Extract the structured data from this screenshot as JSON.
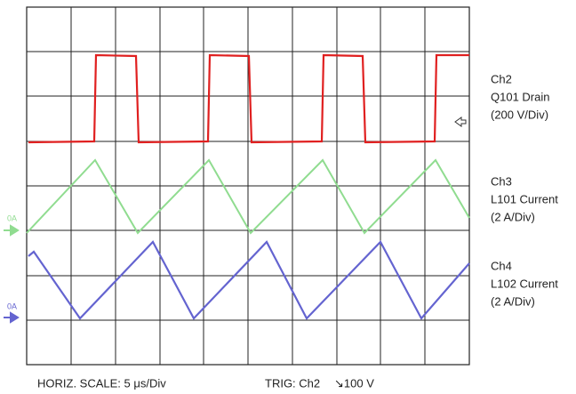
{
  "channels": [
    {
      "lines": [
        "Ch2",
        "Q101 Drain",
        "(200 V/Div)"
      ]
    },
    {
      "lines": [
        "Ch3",
        "L101 Current",
        "(2 A/Div)"
      ]
    },
    {
      "lines": [
        "Ch4",
        "L102 Current",
        "(2 A/Div)"
      ]
    }
  ],
  "markers": [
    {
      "label": "0A"
    },
    {
      "label": "0A"
    }
  ],
  "footer": {
    "horizontal": "HORIZ. SCALE: 5 μs/Div",
    "trigger": "TRIG: Ch2",
    "trigger_level": "↘100 V"
  }
}
